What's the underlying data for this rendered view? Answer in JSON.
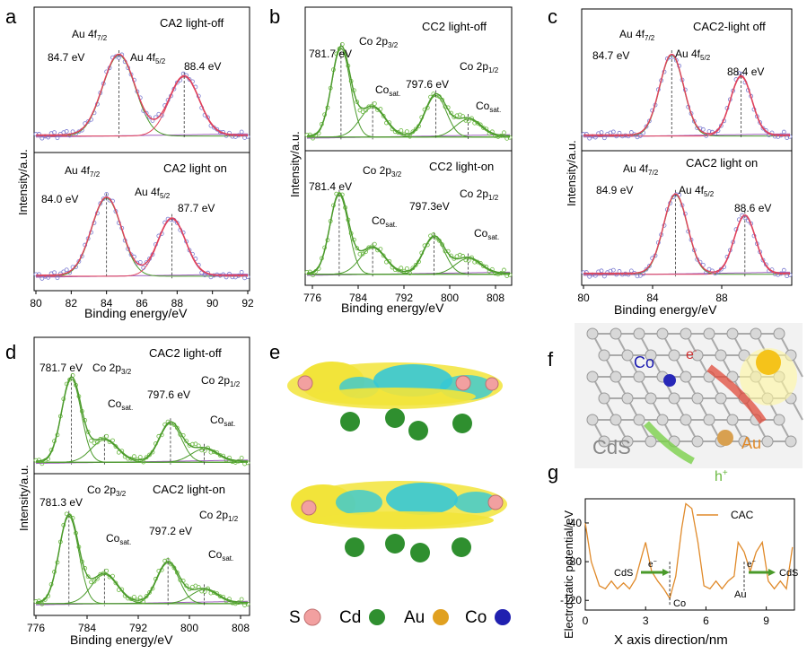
{
  "panels": {
    "a": {
      "letter": "a",
      "top": {
        "title": "CA2 light-off",
        "peak1_label": "Au 4f",
        "peak1_sub": "7/2",
        "peak2_label": "Au 4f",
        "peak2_sub": "5/2",
        "peak1_value": "84.7 eV",
        "peak2_value": "88.4 eV"
      },
      "bottom": {
        "title": "CA2 light on",
        "peak1_label": "Au 4f",
        "peak1_sub": "7/2",
        "peak2_label": "Au 4f",
        "peak2_sub": "5/2",
        "peak1_value": "84.0 eV",
        "peak2_value": "87.7 eV"
      },
      "ylabel": "Intensity/a.u.",
      "xlabel": "Binding energy/eV",
      "ticks": [
        "80",
        "82",
        "84",
        "86",
        "88",
        "90",
        "92"
      ]
    },
    "b": {
      "letter": "b",
      "top": {
        "title": "CC2 light-off",
        "main1": "Co 2p",
        "main1_sub": "3/2",
        "main2": "Co 2p",
        "main2_sub": "1/2",
        "sat1": "Co",
        "sat1_sub": "sat.",
        "sat2": "Co",
        "sat2_sub": "sat.",
        "value1": "781.7 eV",
        "value2": "797.6 eV"
      },
      "bottom": {
        "title": "CC2 light-on",
        "main1": "Co 2p",
        "main1_sub": "3/2",
        "main2": "Co 2p",
        "main2_sub": "1/2",
        "sat1": "Co",
        "sat1_sub": "sat.",
        "sat2": "Co",
        "sat2_sub": "sat.",
        "value1": "781.4 eV",
        "value2": "797.3eV"
      },
      "ylabel": "Intensity/a.u.",
      "xlabel": "Binding energy/eV",
      "ticks": [
        "776",
        "784",
        "792",
        "800",
        "808"
      ]
    },
    "c": {
      "letter": "c",
      "top": {
        "title": "CAC2-light off",
        "peak1_label": "Au 4f",
        "peak1_sub": "7/2",
        "peak2_label": "Au 4f",
        "peak2_sub": "5/2",
        "peak1_value": "84.7 eV",
        "peak2_value": "88.4 eV"
      },
      "bottom": {
        "title": "CAC2 light on",
        "peak1_label": "Au 4f",
        "peak1_sub": "7/2",
        "peak2_label": "Au 4f",
        "peak2_sub": "5/2",
        "peak1_value": "84.9 eV",
        "peak2_value": "88.6 eV"
      },
      "ylabel": "Intensity/a.u.",
      "xlabel": "Binding energy/eV",
      "ticks": [
        "80",
        "84",
        "88"
      ]
    },
    "d": {
      "letter": "d",
      "top": {
        "title": "CAC2  light-off",
        "main1": "Co 2p",
        "main1_sub": "3/2",
        "main2": "Co 2p",
        "main2_sub": "1/2",
        "sat1": "Co",
        "sat1_sub": "sat.",
        "sat2": "Co",
        "sat2_sub": "sat.",
        "value1": "781.7 eV",
        "value2": "797.6 eV"
      },
      "bottom": {
        "title": "CAC2  light-on",
        "main1": "Co 2p",
        "main1_sub": "3/2",
        "main2": "Co 2p",
        "main2_sub": "1/2",
        "sat1": "Co",
        "sat1_sub": "sat.",
        "sat2": "Co",
        "sat2_sub": "sat.",
        "value1": "781.3 eV",
        "value2": "797.2 eV"
      },
      "ylabel": "Intensity/a.u.",
      "xlabel": "Binding energy/eV",
      "ticks": [
        "776",
        "784",
        "792",
        "800",
        "808"
      ]
    },
    "e": {
      "letter": "e",
      "legend": [
        {
          "label": "S",
          "color": "#f2a0a0"
        },
        {
          "label": "Cd",
          "color": "#2f8f2f"
        },
        {
          "label": "Au",
          "color": "#e0a020"
        },
        {
          "label": "Co",
          "color": "#2020b0"
        }
      ]
    },
    "f": {
      "letter": "f",
      "labels": {
        "co": "Co",
        "electron": "e",
        "electron_sup": "-",
        "cds": "CdS",
        "au": "Au",
        "hole": "h",
        "hole_sup": "+"
      }
    },
    "g": {
      "letter": "g",
      "ylabel": "Electrostatic potential/eV",
      "xlabel": "X axis direction/nm",
      "legend": "CAC",
      "yticks": [
        "-40",
        "-80",
        "-120"
      ],
      "xticks": [
        "0",
        "3",
        "6",
        "9"
      ],
      "annotations": {
        "cds_left": "CdS",
        "cds_right": "CdS",
        "co": "Co",
        "au": "Au",
        "e1": "e",
        "e2": "e",
        "sup": "−"
      }
    }
  },
  "colors": {
    "accent_green": "#4a9a2a",
    "fit_red": "#e0405a",
    "fit_blue": "#3a8ab0",
    "background_line": "#a060c0",
    "raw_blue_circle": "#7a7ad0",
    "raw_green_circle": "#6ab840",
    "potential_orange": "#e08a2a"
  },
  "chart_data": [
    {
      "type": "line",
      "title": "CA2 light-off",
      "xlabel": "Binding energy/eV",
      "ylabel": "Intensity/a.u.",
      "xlim": [
        80,
        92
      ],
      "peaks": [
        {
          "name": "Au 4f7/2",
          "x": 84.7
        },
        {
          "name": "Au 4f5/2",
          "x": 88.4
        }
      ]
    },
    {
      "type": "line",
      "title": "CA2 light on",
      "xlabel": "Binding energy/eV",
      "ylabel": "Intensity/a.u.",
      "xlim": [
        80,
        92
      ],
      "peaks": [
        {
          "name": "Au 4f7/2",
          "x": 84.0
        },
        {
          "name": "Au 4f5/2",
          "x": 87.7
        }
      ]
    },
    {
      "type": "line",
      "title": "CC2 light-off",
      "xlabel": "Binding energy/eV",
      "ylabel": "Intensity/a.u.",
      "xlim": [
        776,
        810
      ],
      "peaks": [
        {
          "name": "Co 2p3/2",
          "x": 781.7
        },
        {
          "name": "Co 2p1/2",
          "x": 797.6
        }
      ]
    },
    {
      "type": "line",
      "title": "CC2 light-on",
      "xlabel": "Binding energy/eV",
      "ylabel": "Intensity/a.u.",
      "xlim": [
        776,
        810
      ],
      "peaks": [
        {
          "name": "Co 2p3/2",
          "x": 781.4
        },
        {
          "name": "Co 2p1/2",
          "x": 797.3
        }
      ]
    },
    {
      "type": "line",
      "title": "CAC2-light off",
      "xlabel": "Binding energy/eV",
      "ylabel": "Intensity/a.u.",
      "xlim": [
        80,
        91
      ],
      "peaks": [
        {
          "name": "Au 4f7/2",
          "x": 84.7
        },
        {
          "name": "Au 4f5/2",
          "x": 88.4
        }
      ]
    },
    {
      "type": "line",
      "title": "CAC2 light on",
      "xlabel": "Binding energy/eV",
      "ylabel": "Intensity/a.u.",
      "xlim": [
        80,
        91
      ],
      "peaks": [
        {
          "name": "Au 4f7/2",
          "x": 84.9
        },
        {
          "name": "Au 4f5/2",
          "x": 88.6
        }
      ]
    },
    {
      "type": "line",
      "title": "CAC2 light-off",
      "xlabel": "Binding energy/eV",
      "ylabel": "Intensity/a.u.",
      "xlim": [
        776,
        810
      ],
      "peaks": [
        {
          "name": "Co 2p3/2",
          "x": 781.7
        },
        {
          "name": "Co 2p1/2",
          "x": 797.6
        }
      ]
    },
    {
      "type": "line",
      "title": "CAC2 light-on",
      "xlabel": "Binding energy/eV",
      "ylabel": "Intensity/a.u.",
      "xlim": [
        776,
        810
      ],
      "peaks": [
        {
          "name": "Co 2p3/2",
          "x": 781.3
        },
        {
          "name": "Co 2p1/2",
          "x": 797.2
        }
      ]
    },
    {
      "type": "line",
      "title": "",
      "xlabel": "X axis direction/nm",
      "ylabel": "Electrostatic potential/eV",
      "xlim": [
        0,
        10.4
      ],
      "ylim": [
        -130,
        -15
      ],
      "series": [
        {
          "name": "CAC",
          "x": [
            0,
            0.3,
            0.7,
            1.0,
            1.3,
            1.6,
            1.9,
            2.2,
            2.5,
            2.8,
            3.0,
            3.3,
            3.6,
            3.9,
            4.2,
            4.5,
            4.8,
            5.0,
            5.3,
            5.6,
            5.9,
            6.2,
            6.5,
            6.8,
            7.1,
            7.4,
            7.6,
            7.9,
            8.2,
            8.5,
            8.8,
            9.1,
            9.4,
            9.7,
            10.0,
            10.3
          ],
          "values": [
            -40,
            -80,
            -105,
            -108,
            -100,
            -108,
            -102,
            -108,
            -98,
            -75,
            -60,
            -90,
            -100,
            -108,
            -118,
            -95,
            -45,
            -20,
            -25,
            -60,
            -105,
            -108,
            -100,
            -108,
            -100,
            -95,
            -60,
            -70,
            -90,
            -70,
            -60,
            -100,
            -108,
            -100,
            -108,
            -65
          ]
        }
      ]
    }
  ]
}
